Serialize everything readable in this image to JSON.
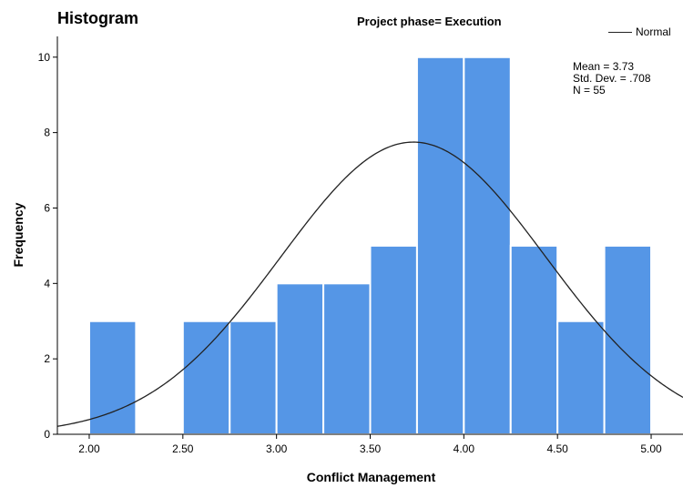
{
  "chart_data": {
    "type": "bar",
    "title": "Histogram",
    "subtitle": "Project phase= Execution",
    "xlabel": "Conflict Management",
    "ylabel": "Frequency",
    "xlim": [
      1.83,
      5.17
    ],
    "ylim": [
      0,
      10.55
    ],
    "x_ticks": [
      "2.00",
      "2.50",
      "3.00",
      "3.50",
      "4.00",
      "4.50",
      "5.00"
    ],
    "y_ticks": [
      "0",
      "2",
      "4",
      "6",
      "8",
      "10"
    ],
    "bin_edges": [
      2.0,
      2.25,
      2.5,
      2.75,
      3.0,
      3.25,
      3.5,
      3.75,
      4.0,
      4.25,
      4.5,
      4.75,
      5.0
    ],
    "counts": [
      3,
      0,
      3,
      3,
      4,
      4,
      5,
      10,
      10,
      5,
      3,
      5
    ],
    "bar_color": "#5596e6",
    "legend": {
      "label": "Normal",
      "position": "top-right"
    },
    "stats": [
      "Mean = 3.73",
      "Std. Dev. = .708",
      "N = 55"
    ],
    "normal_curve": {
      "mean": 3.73,
      "sd": 0.708,
      "n": 55,
      "bin_width": 0.25,
      "color": "#222222"
    },
    "grid": false
  }
}
